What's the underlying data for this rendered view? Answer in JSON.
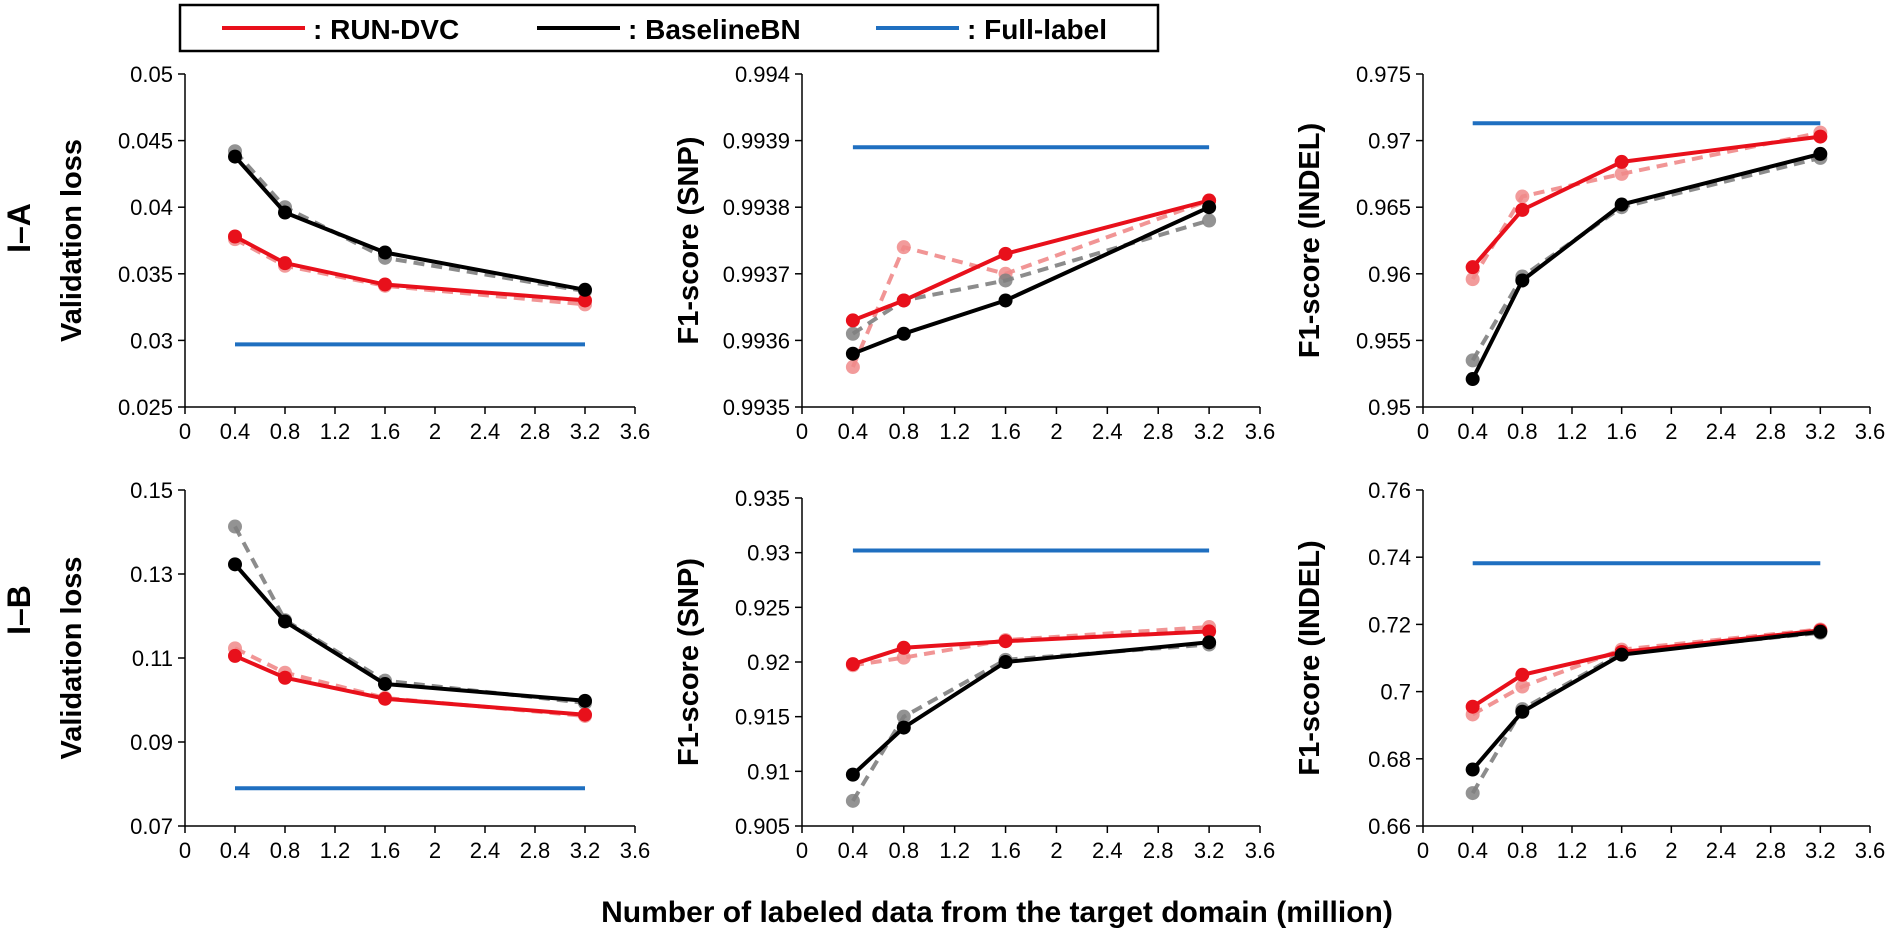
{
  "legend": [
    {
      "label": ": RUN-DVC",
      "color": "#e8101b"
    },
    {
      "label": ": BaselineBN",
      "color": "#000000"
    },
    {
      "label": ": Full-label",
      "color": "#1f6fc0"
    }
  ],
  "xlabel": "Number of labeled data from the target domain (million)",
  "row_labels": [
    "I–A",
    "I–B"
  ],
  "colors": {
    "run": "#e8101b",
    "run_light": "#f08a8a",
    "base": "#000000",
    "base_light": "#808080",
    "full": "#1f6fc0"
  },
  "chart_data": [
    {
      "type": "line",
      "row": "I–A",
      "ylabel": "Validation loss",
      "xlim": [
        0,
        3.6
      ],
      "xticks": [
        "0",
        "0.4",
        "0.8",
        "1.2",
        "1.6",
        "2",
        "2.4",
        "2.8",
        "3.2",
        "3.6"
      ],
      "ylim": [
        0.025,
        0.05
      ],
      "yticks": [
        "0.025",
        "0.03",
        "0.035",
        "0.04",
        "0.045",
        "0.05"
      ],
      "x": [
        0.4,
        0.8,
        1.6,
        3.2
      ],
      "series": [
        {
          "name": "RUN-DVC",
          "values": [
            0.0378,
            0.0358,
            0.0342,
            0.033
          ]
        },
        {
          "name": "RUN-DVC",
          "values": [
            0.0376,
            0.0356,
            0.0341,
            0.0327
          ],
          "dashed": true
        },
        {
          "name": "BaselineBN",
          "values": [
            0.0438,
            0.0396,
            0.0366,
            0.0338
          ]
        },
        {
          "name": "BaselineBN",
          "values": [
            0.0442,
            0.04,
            0.0362,
            0.0337
          ],
          "dashed": true
        },
        {
          "name": "Full-label",
          "values": [
            0.0297,
            0.0297
          ],
          "x": [
            0.4,
            3.2
          ],
          "flat": true
        }
      ]
    },
    {
      "type": "line",
      "row": "I–A",
      "ylabel": "F1-score (SNP)",
      "xlim": [
        0,
        3.6
      ],
      "xticks": [
        "0",
        "0.4",
        "0.8",
        "1.2",
        "1.6",
        "2",
        "2.4",
        "2.8",
        "3.2",
        "3.6"
      ],
      "ylim": [
        0.9935,
        0.994
      ],
      "yticks": [
        "0.9935",
        "0.9936",
        "0.9937",
        "0.9938",
        "0.9939",
        "0.994"
      ],
      "x": [
        0.4,
        0.8,
        1.6,
        3.2
      ],
      "series": [
        {
          "name": "RUN-DVC",
          "values": [
            0.99363,
            0.99366,
            0.99373,
            0.99381
          ]
        },
        {
          "name": "RUN-DVC",
          "values": [
            0.99356,
            0.99374,
            0.9937,
            0.99381
          ],
          "dashed": true
        },
        {
          "name": "BaselineBN",
          "values": [
            0.99358,
            0.99361,
            0.99366,
            0.9938
          ]
        },
        {
          "name": "BaselineBN",
          "values": [
            0.99361,
            0.99366,
            0.99369,
            0.99378
          ],
          "dashed": true
        },
        {
          "name": "Full-label",
          "values": [
            0.99389,
            0.99389
          ],
          "x": [
            0.4,
            3.2
          ],
          "flat": true
        }
      ]
    },
    {
      "type": "line",
      "row": "I–A",
      "ylabel": "F1-score (INDEL)",
      "xlim": [
        0,
        3.6
      ],
      "xticks": [
        "0",
        "0.4",
        "0.8",
        "1.2",
        "1.6",
        "2",
        "2.4",
        "2.8",
        "3.2",
        "3.6"
      ],
      "ylim": [
        0.95,
        0.975
      ],
      "yticks": [
        "0.95",
        "0.955",
        "0.96",
        "0.965",
        "0.97",
        "0.975"
      ],
      "x": [
        0.4,
        0.8,
        1.6,
        3.2
      ],
      "series": [
        {
          "name": "RUN-DVC",
          "values": [
            0.9605,
            0.9648,
            0.9684,
            0.9703
          ]
        },
        {
          "name": "RUN-DVC",
          "values": [
            0.9596,
            0.9658,
            0.9675,
            0.9706
          ],
          "dashed": true
        },
        {
          "name": "BaselineBN",
          "values": [
            0.9521,
            0.9595,
            0.9652,
            0.969
          ]
        },
        {
          "name": "BaselineBN",
          "values": [
            0.9535,
            0.9598,
            0.965,
            0.9687
          ],
          "dashed": true
        },
        {
          "name": "Full-label",
          "values": [
            0.9713,
            0.9713
          ],
          "x": [
            0.4,
            3.2
          ],
          "flat": true
        }
      ]
    },
    {
      "type": "line",
      "row": "I–B",
      "ylabel": "Validation loss",
      "xlim": [
        0,
        3.6
      ],
      "xticks": [
        "0",
        "0.4",
        "0.8",
        "1.2",
        "1.6",
        "2",
        "2.4",
        "2.8",
        "3.2",
        "3.6"
      ],
      "ylim": [
        0.07,
        0.15
      ],
      "yticks": [
        "0.07",
        "0.09",
        "0.11",
        "0.13",
        "0.15"
      ],
      "x": [
        0.4,
        0.8,
        1.6,
        3.2
      ],
      "series": [
        {
          "name": "RUN-DVC",
          "values": [
            0.1105,
            0.1053,
            0.1003,
            0.0965
          ]
        },
        {
          "name": "RUN-DVC",
          "values": [
            0.1123,
            0.1065,
            0.1005,
            0.0962
          ],
          "dashed": true
        },
        {
          "name": "BaselineBN",
          "values": [
            0.1323,
            0.1187,
            0.1038,
            0.0998
          ]
        },
        {
          "name": "BaselineBN",
          "values": [
            0.1413,
            0.119,
            0.1046,
            0.0993
          ],
          "dashed": true
        },
        {
          "name": "Full-label",
          "values": [
            0.079,
            0.079
          ],
          "x": [
            0.4,
            3.2
          ],
          "flat": true
        }
      ]
    },
    {
      "type": "line",
      "row": "I–B",
      "ylabel": "F1-score (SNP)",
      "xlim": [
        0,
        3.6
      ],
      "xticks": [
        "0",
        "0.4",
        "0.8",
        "1.2",
        "1.6",
        "2",
        "2.4",
        "2.8",
        "3.2",
        "3.6"
      ],
      "ylim": [
        0.905,
        0.935
      ],
      "yticks": [
        "0.905",
        "0.91",
        "0.915",
        "0.92",
        "0.925",
        "0.93",
        "0.935"
      ],
      "x": [
        0.4,
        0.8,
        1.6,
        3.2
      ],
      "series": [
        {
          "name": "RUN-DVC",
          "values": [
            0.9198,
            0.9213,
            0.9219,
            0.9228
          ]
        },
        {
          "name": "RUN-DVC",
          "values": [
            0.9197,
            0.9204,
            0.922,
            0.9232
          ],
          "dashed": true
        },
        {
          "name": "BaselineBN",
          "values": [
            0.9097,
            0.914,
            0.92,
            0.9218
          ]
        },
        {
          "name": "BaselineBN",
          "values": [
            0.9073,
            0.915,
            0.9202,
            0.9216
          ],
          "dashed": true
        },
        {
          "name": "Full-label",
          "values": [
            0.9302,
            0.9302
          ],
          "x": [
            0.4,
            3.2
          ],
          "flat": true
        }
      ]
    },
    {
      "type": "line",
      "row": "I–B",
      "ylabel": "F1-score (INDEL)",
      "xlim": [
        0,
        3.6
      ],
      "xticks": [
        "0",
        "0.4",
        "0.8",
        "1.2",
        "1.6",
        "2",
        "2.4",
        "2.8",
        "3.2",
        "3.6"
      ],
      "ylim": [
        0.66,
        0.76
      ],
      "yticks": [
        "0.66",
        "0.68",
        "0.7",
        "0.72",
        "0.74",
        "0.76"
      ],
      "x": [
        0.4,
        0.8,
        1.6,
        3.2
      ],
      "series": [
        {
          "name": "RUN-DVC",
          "values": [
            0.6955,
            0.705,
            0.7118,
            0.7182
          ]
        },
        {
          "name": "RUN-DVC",
          "values": [
            0.6932,
            0.7015,
            0.7125,
            0.7185
          ],
          "dashed": true
        },
        {
          "name": "BaselineBN",
          "values": [
            0.6768,
            0.694,
            0.711,
            0.7178
          ]
        },
        {
          "name": "BaselineBN",
          "values": [
            0.6698,
            0.6948,
            0.7115,
            0.7175
          ],
          "dashed": true
        },
        {
          "name": "Full-label",
          "values": [
            0.7382,
            0.7382
          ],
          "x": [
            0.4,
            3.2
          ],
          "flat": true
        }
      ]
    }
  ]
}
